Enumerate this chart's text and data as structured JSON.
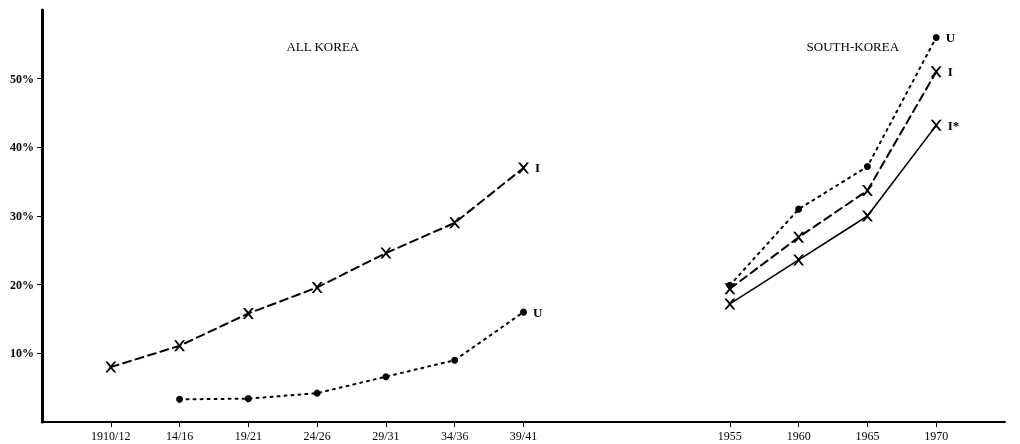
{
  "chart_data": {
    "type": "line",
    "categories": [
      null,
      "1910/12",
      "14/16",
      "19/21",
      "24/26",
      "29/31",
      "34/36",
      "39/41",
      null,
      null,
      "1955",
      "1960",
      "1965",
      "1970",
      null
    ],
    "series": [
      {
        "name": "I",
        "color": "#000000",
        "marker": "cross",
        "line_style": "dashed",
        "values": [
          null,
          8.0,
          11.1,
          15.8,
          19.6,
          24.6,
          29.0,
          37.0,
          null,
          null,
          null,
          null,
          null,
          null,
          null
        ]
      },
      {
        "name": "U",
        "color": "#000000",
        "marker": "circle",
        "line_style": "dotted",
        "values": [
          null,
          null,
          3.3,
          3.4,
          4.2,
          6.6,
          9.0,
          16.0,
          null,
          null,
          null,
          null,
          null,
          null,
          null
        ]
      },
      {
        "name": "U",
        "color": "#000000",
        "marker": "circle",
        "line_style": "dotted",
        "values": [
          null,
          null,
          null,
          null,
          null,
          null,
          null,
          null,
          null,
          null,
          19.9,
          31.0,
          37.2,
          56.0,
          null
        ]
      },
      {
        "name": "I",
        "color": "#000000",
        "marker": "cross",
        "line_style": "dashed",
        "values": [
          null,
          null,
          null,
          null,
          null,
          null,
          null,
          null,
          null,
          null,
          19.4,
          26.9,
          33.7,
          51.0,
          null
        ]
      },
      {
        "name": "I*",
        "color": "#000000",
        "marker": "cross",
        "line_style": "solid",
        "values": [
          null,
          null,
          null,
          null,
          null,
          null,
          null,
          null,
          null,
          null,
          17.2,
          23.6,
          30.0,
          43.2,
          null
        ]
      }
    ],
    "ylim": [
      0,
      60
    ],
    "yticks": [
      {
        "value": 10,
        "label": "10%"
      },
      {
        "value": 20,
        "label": "20%"
      },
      {
        "value": 30,
        "label": "30%"
      },
      {
        "value": 40,
        "label": "40%"
      },
      {
        "value": 50,
        "label": "50%"
      }
    ],
    "annotations": [
      "ALL KOREA",
      "SOUTH-KOREA"
    ],
    "grid": false,
    "legend": false
  }
}
